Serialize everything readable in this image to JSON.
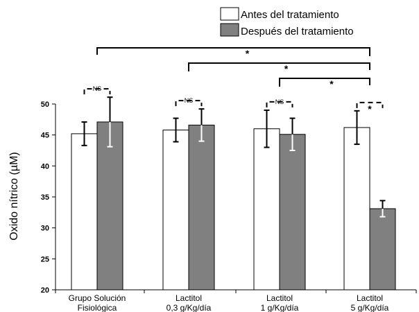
{
  "chart_data": {
    "type": "bar",
    "title": "",
    "xlabel": "",
    "ylabel": "Oxido nítrico (µM)",
    "ylim": [
      20,
      50
    ],
    "yticks": [
      20,
      25,
      30,
      35,
      40,
      45,
      50
    ],
    "grid": false,
    "legend_position": "top-right",
    "categories": [
      {
        "line1": "Grupo Solución",
        "line2": "Fisiológica"
      },
      {
        "line1": "Lactitol",
        "line2": "0,3 g/Kg/día"
      },
      {
        "line1": "Lactitol",
        "line2": "1 g/Kg/día"
      },
      {
        "line1": "Lactitol",
        "line2": "5 g/Kg/día"
      }
    ],
    "series": [
      {
        "name": "Antes del tratamiento",
        "color": "#ffffff",
        "values": [
          45.2,
          45.8,
          46.0,
          46.2
        ],
        "errors": [
          1.9,
          1.9,
          3.0,
          2.7
        ]
      },
      {
        "name": "Después del tratamiento",
        "color": "#808080",
        "values": [
          47.1,
          46.6,
          45.1,
          33.1
        ],
        "errors": [
          4.0,
          2.6,
          2.6,
          1.3
        ]
      }
    ],
    "annotations": {
      "within_group": [
        "NS",
        "NS",
        "NS",
        "*"
      ],
      "between_groups": [
        {
          "from_group": 0,
          "to_group": 3,
          "label": "*"
        },
        {
          "from_group": 1,
          "to_group": 3,
          "label": "*"
        },
        {
          "from_group": 2,
          "to_group": 3,
          "label": "*"
        }
      ]
    }
  }
}
